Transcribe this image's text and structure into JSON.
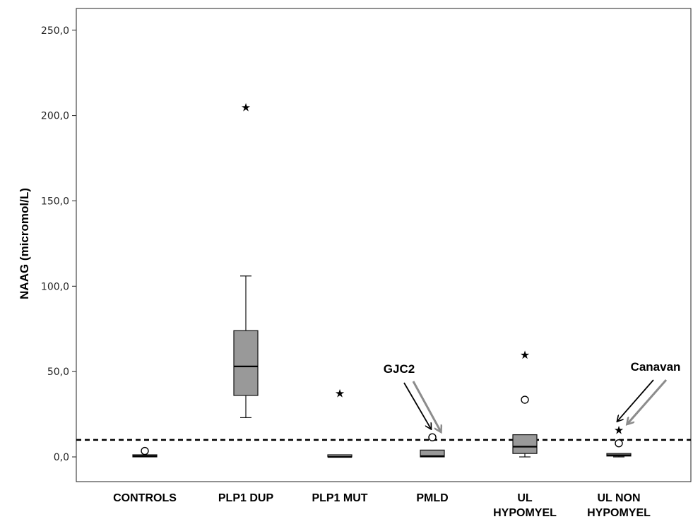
{
  "chart_data": {
    "type": "box",
    "title": "",
    "xlabel": "",
    "ylabel": "NAAG (micromol/L)",
    "ylim": [
      -15,
      262
    ],
    "yticks": [
      0,
      50,
      100,
      150,
      200,
      250
    ],
    "ytick_labels": [
      "0,0",
      "50,0",
      "100,0",
      "150,0",
      "200,0",
      "250,0"
    ],
    "categories": [
      [
        "CONTROLS"
      ],
      [
        "PLP1 DUP"
      ],
      [
        "PLP1 MUT"
      ],
      [
        "PMLD"
      ],
      [
        "UL",
        "HYPOMYEL"
      ],
      [
        "UL NON",
        "HYPOMYEL"
      ]
    ],
    "boxes": [
      {
        "whisker_low": 0,
        "q1": 0,
        "median": 0.5,
        "q3": 1,
        "whisker_high": 1,
        "outliers": [
          3.5
        ],
        "extremes": []
      },
      {
        "whisker_low": 23,
        "q1": 36,
        "median": 53,
        "q3": 74,
        "whisker_high": 106,
        "outliers": [],
        "extremes": [
          205
        ]
      },
      {
        "whisker_low": 0,
        "q1": 0,
        "median": 0,
        "q3": 0.5,
        "whisker_high": 0.5,
        "outliers": [],
        "extremes": [
          37.5
        ]
      },
      {
        "whisker_low": 0,
        "q1": 0,
        "median": 0.5,
        "q3": 4,
        "whisker_high": 4,
        "outliers": [
          11.5
        ],
        "extremes": []
      },
      {
        "whisker_low": 0,
        "q1": 2,
        "median": 6,
        "q3": 13,
        "whisker_high": 13,
        "outliers": [
          33.5
        ],
        "extremes": [
          60
        ]
      },
      {
        "whisker_low": 0,
        "q1": 0.5,
        "median": 1,
        "q3": 2,
        "whisker_high": 2,
        "outliers": [
          8
        ],
        "extremes": [
          16
        ]
      }
    ],
    "reference_line": {
      "value": 10,
      "style": "dashed"
    },
    "annotations": [
      {
        "text": "GJC2",
        "category_index": 3,
        "value": 11.5
      },
      {
        "text": "Canavan",
        "category_index": 5,
        "value": 16
      }
    ],
    "colors": {
      "box_fill": "#999999",
      "box_stroke": "#111111",
      "annotation_gray_arrow": "#8c8c8c",
      "annotation_black_arrow": "#000000"
    },
    "grid": false,
    "legend": "none"
  }
}
